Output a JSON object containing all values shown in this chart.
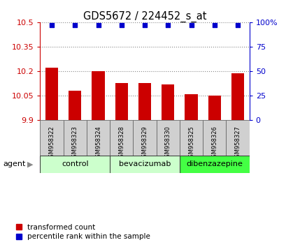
{
  "title": "GDS5672 / 224452_s_at",
  "categories": [
    "GSM958322",
    "GSM958323",
    "GSM958324",
    "GSM958328",
    "GSM958329",
    "GSM958330",
    "GSM958325",
    "GSM958326",
    "GSM958327"
  ],
  "bar_values": [
    10.22,
    10.08,
    10.2,
    10.13,
    10.13,
    10.12,
    10.06,
    10.05,
    10.19
  ],
  "bar_bottom": 9.9,
  "percentile_values": [
    97,
    97,
    97,
    97,
    97,
    97,
    97,
    97,
    97
  ],
  "ylim_left": [
    9.9,
    10.5
  ],
  "ylim_right": [
    0,
    100
  ],
  "yticks_left": [
    9.9,
    10.05,
    10.2,
    10.35,
    10.5
  ],
  "yticks_right": [
    0,
    25,
    50,
    75,
    100
  ],
  "ytick_labels_left": [
    "9.9",
    "10.05",
    "10.2",
    "10.35",
    "10.5"
  ],
  "ytick_labels_right": [
    "0",
    "25",
    "50",
    "75",
    "100%"
  ],
  "bar_color": "#cc0000",
  "dot_color": "#0000cc",
  "groups": [
    {
      "label": "control",
      "start": 0,
      "end": 2,
      "color": "#ccffcc"
    },
    {
      "label": "bevacizumab",
      "start": 3,
      "end": 5,
      "color": "#ccffcc"
    },
    {
      "label": "dibenzazepine",
      "start": 6,
      "end": 8,
      "color": "#44ff44"
    }
  ],
  "agent_label": "agent",
  "legend_bar_label": "transformed count",
  "legend_dot_label": "percentile rank within the sample",
  "background_color": "#ffffff",
  "plot_bg_color": "#ffffff",
  "grid_color": "#888888",
  "tick_label_color_left": "#cc0000",
  "tick_label_color_right": "#0000cc",
  "gsm_cell_color": "#d0d0d0"
}
